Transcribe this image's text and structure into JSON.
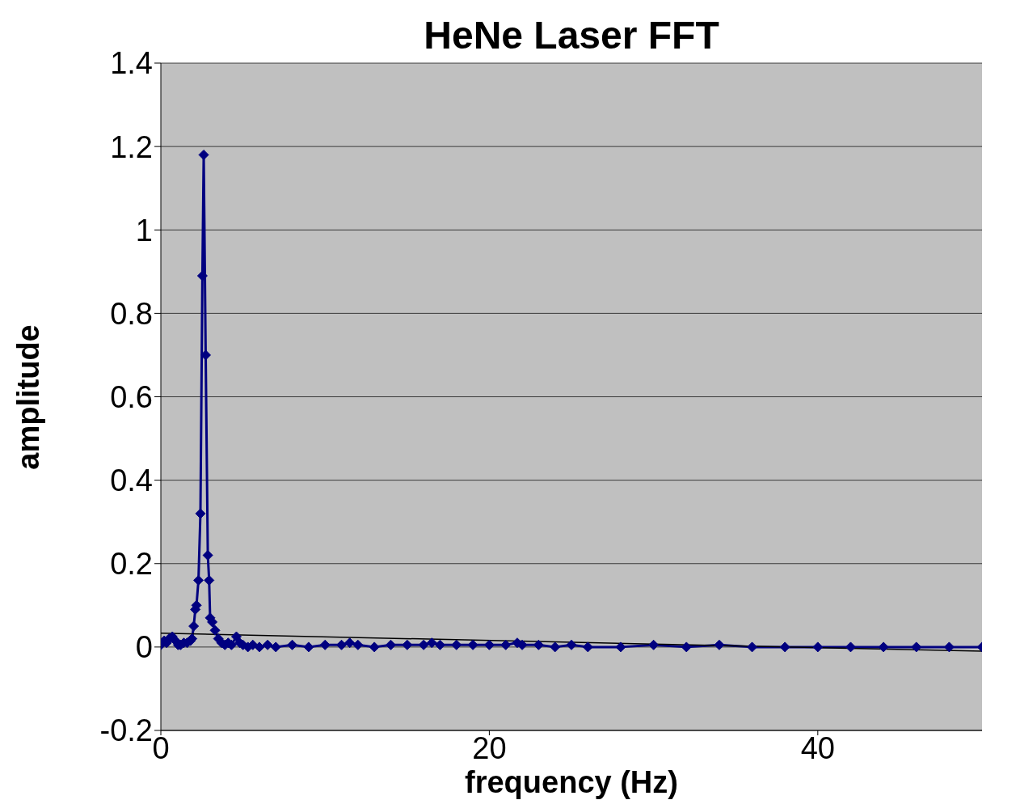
{
  "chart_data": {
    "type": "line",
    "title": "HeNe Laser FFT",
    "xlabel": "frequency (Hz)",
    "ylabel": "amplitude",
    "xlim": [
      0,
      50
    ],
    "xticks": [
      0,
      20,
      40
    ],
    "ylim": [
      -0.2,
      1.4
    ],
    "yticks": [
      -0.2,
      0,
      0.2,
      0.4,
      0.6,
      0.8,
      1,
      1.2,
      1.4
    ],
    "grid": "y",
    "marker": "diamond",
    "line_style": "solid",
    "series": [
      {
        "color": "#000080",
        "x": [
          0,
          0.2,
          0.35,
          0.5,
          0.7,
          0.9,
          1.05,
          1.2,
          1.4,
          1.6,
          1.8,
          1.9,
          2.0,
          2.1,
          2.17,
          2.29,
          2.41,
          2.53,
          2.61,
          2.73,
          2.86,
          2.94,
          3.0,
          3.13,
          3.3,
          3.5,
          3.7,
          3.9,
          4.1,
          4.3,
          4.6,
          4.8,
          5.0,
          5.3,
          5.6,
          6,
          6.5,
          7,
          8,
          9,
          10,
          11,
          11.5,
          12,
          13,
          14,
          15,
          16,
          16.5,
          17,
          18,
          19,
          20,
          21,
          21.7,
          22,
          23,
          24,
          25,
          26,
          28,
          30,
          32,
          34,
          36,
          38,
          40,
          42,
          44,
          46,
          48,
          50
        ],
        "values": [
          0.005,
          0.015,
          0.01,
          0.02,
          0.025,
          0.015,
          0.005,
          0.005,
          0.01,
          0.01,
          0.015,
          0.02,
          0.05,
          0.09,
          0.1,
          0.16,
          0.32,
          0.89,
          1.18,
          0.7,
          0.22,
          0.16,
          0.07,
          0.06,
          0.04,
          0.02,
          0.01,
          0.005,
          0.01,
          0.005,
          0.025,
          0.01,
          0.005,
          0,
          0.005,
          0,
          0.005,
          0,
          0.005,
          0,
          0.005,
          0.005,
          0.01,
          0.005,
          0,
          0.005,
          0.005,
          0.005,
          0.01,
          0.005,
          0.005,
          0.005,
          0.005,
          0.005,
          0.01,
          0.005,
          0.005,
          0,
          0.005,
          0,
          0,
          0.005,
          0,
          0.005,
          0,
          0,
          0,
          0,
          0,
          0,
          0,
          0
        ]
      },
      {
        "type": "line",
        "color": "#000000",
        "marker": "none",
        "x": [
          0,
          50
        ],
        "values": [
          0.033,
          -0.01
        ]
      }
    ]
  }
}
